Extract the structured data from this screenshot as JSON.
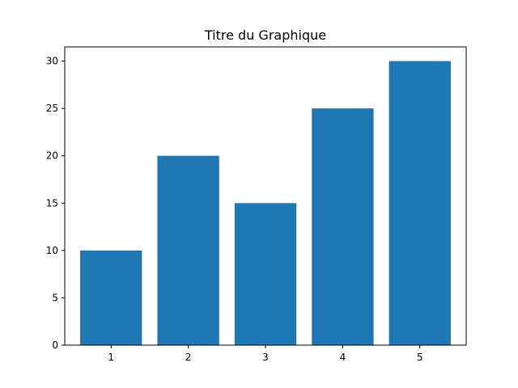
{
  "chart_data": {
    "type": "bar",
    "title": "Titre du Graphique",
    "xlabel": "",
    "ylabel": "",
    "categories": [
      "1",
      "2",
      "3",
      "4",
      "5"
    ],
    "x": [
      1,
      2,
      3,
      4,
      5
    ],
    "values": [
      10,
      20,
      15,
      25,
      30
    ],
    "xlim": [
      0.4,
      5.6
    ],
    "ylim": [
      0,
      31.5
    ],
    "yticks": [
      0,
      5,
      10,
      15,
      20,
      25,
      30
    ],
    "bar_color": "#1f77b4",
    "grid": false,
    "legend": "none"
  }
}
